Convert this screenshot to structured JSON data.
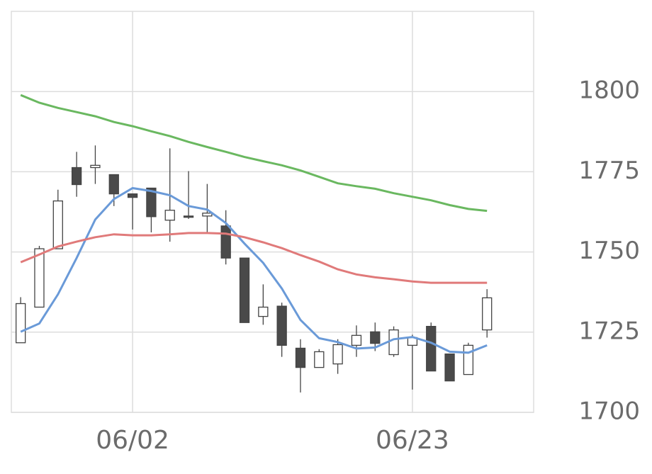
{
  "chart_data": {
    "type": "candlestick",
    "categories": [
      null,
      null,
      null,
      null,
      null,
      null,
      "06/02",
      null,
      null,
      null,
      null,
      null,
      null,
      null,
      null,
      null,
      null,
      null,
      null,
      null,
      null,
      "06/23",
      null,
      null,
      null,
      null
    ],
    "open": [
      1721.7,
      1732.8,
      1751.0,
      1776.3,
      1776.3,
      1774.1,
      1768.1,
      1769.9,
      1759.9,
      1761.2,
      1761.2,
      1758.1,
      1748.1,
      1729.9,
      1733.1,
      1720.0,
      1714.0,
      1715.1,
      1720.9,
      1725.1,
      1718.0,
      1720.9,
      1726.8,
      1718.2,
      1711.8,
      1725.7
    ],
    "high": [
      1735.9,
      1751.9,
      1769.4,
      1781.2,
      1783.2,
      1774.1,
      1768.1,
      1769.9,
      1782.3,
      1775.2,
      1771.2,
      1763.0,
      1748.1,
      1739.9,
      1734.2,
      1722.8,
      1719.7,
      1722.8,
      1727.1,
      1728.0,
      1726.8,
      1724.2,
      1728.0,
      1718.2,
      1721.7,
      1738.4
    ],
    "low": [
      1721.7,
      1732.8,
      1751.0,
      1767.2,
      1771.2,
      1764.3,
      1757.0,
      1756.1,
      1753.2,
      1760.3,
      1755.9,
      1746.1,
      1728.0,
      1727.3,
      1717.3,
      1706.2,
      1714.0,
      1712.0,
      1717.3,
      1719.1,
      1717.3,
      1707.1,
      1712.9,
      1709.8,
      1711.8,
      1723.3
    ],
    "close": [
      1733.9,
      1751.0,
      1765.9,
      1771.0,
      1777.0,
      1768.1,
      1767.0,
      1761.0,
      1763.0,
      1760.8,
      1762.1,
      1748.1,
      1728.0,
      1732.8,
      1720.9,
      1714.0,
      1718.9,
      1721.1,
      1724.0,
      1721.5,
      1725.7,
      1723.3,
      1712.9,
      1709.8,
      1720.9,
      1735.7
    ],
    "up_color": "#ffffff",
    "down_color": "#4a4a4a",
    "series": [
      {
        "color": "#6a9ad8",
        "values": [
          1725.1,
          1727.7,
          1736.8,
          1748.1,
          1760.1,
          1766.5,
          1769.9,
          1769.0,
          1767.7,
          1764.3,
          1763.2,
          1759.0,
          1752.6,
          1746.6,
          1738.6,
          1728.8,
          1723.1,
          1721.9,
          1719.9,
          1720.2,
          1722.8,
          1723.5,
          1721.7,
          1718.9,
          1718.6,
          1720.9
        ]
      },
      {
        "color": "#e07a7a",
        "values": [
          1746.8,
          1749.2,
          1751.7,
          1753.2,
          1754.6,
          1755.5,
          1755.2,
          1755.2,
          1755.5,
          1755.9,
          1755.9,
          1755.7,
          1754.6,
          1753.0,
          1751.2,
          1749.0,
          1747.0,
          1744.6,
          1743.0,
          1742.1,
          1741.5,
          1740.8,
          1740.4,
          1740.4,
          1740.4,
          1740.4
        ]
      },
      {
        "color": "#6ab860",
        "values": [
          1798.9,
          1796.5,
          1794.9,
          1793.6,
          1792.3,
          1790.5,
          1789.2,
          1787.6,
          1786.1,
          1784.3,
          1782.7,
          1781.2,
          1779.6,
          1778.3,
          1777.0,
          1775.4,
          1773.4,
          1771.4,
          1770.5,
          1769.7,
          1768.3,
          1767.2,
          1766.1,
          1764.6,
          1763.4,
          1762.8
        ]
      }
    ],
    "ylim": [
      1700,
      1825
    ],
    "yticks": [
      1700,
      1725,
      1750,
      1775,
      1800
    ],
    "grid": true
  }
}
